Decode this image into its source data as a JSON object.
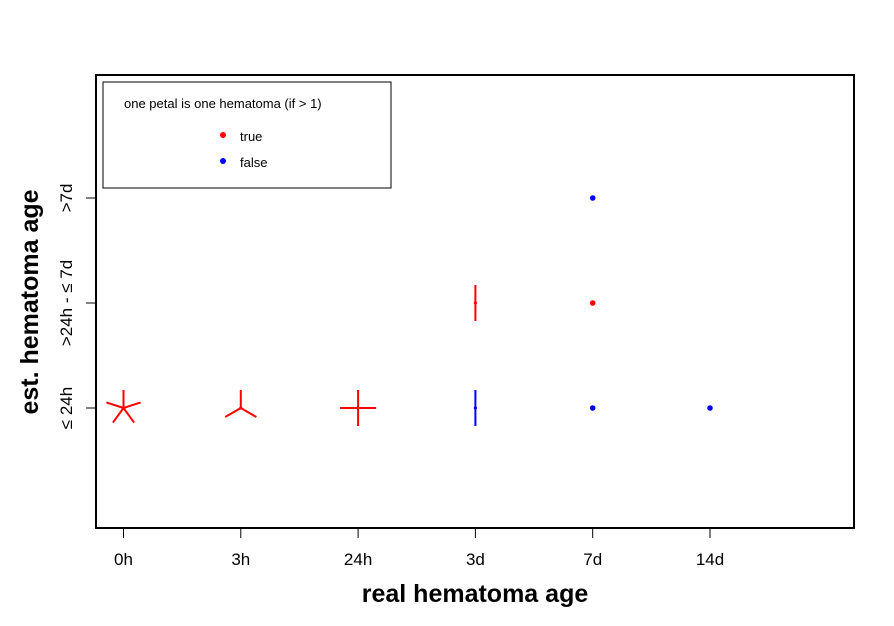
{
  "chart_data": {
    "type": "scatter",
    "title": "",
    "xlabel": "real hematoma age",
    "ylabel": "est. hematoma age",
    "x_categories": [
      "0h",
      "3h",
      "24h",
      "3d",
      "7d",
      "14d"
    ],
    "y_categories": [
      "≤ 24h",
      ">24h - ≤ 7d",
      ">7d"
    ],
    "legend": {
      "position": "top-left",
      "title": "one petal is one hematoma (if > 1)",
      "entries": [
        {
          "label": "true",
          "color": "#ff0000"
        },
        {
          "label": "false",
          "color": "#0000ff"
        }
      ]
    },
    "points": [
      {
        "x": "0h",
        "y": "≤ 24h",
        "count": 5,
        "correct": true
      },
      {
        "x": "3h",
        "y": "≤ 24h",
        "count": 3,
        "correct": true
      },
      {
        "x": "24h",
        "y": "≤ 24h",
        "count": 4,
        "correct": true
      },
      {
        "x": "3d",
        "y": "≤ 24h",
        "count": 2,
        "correct": false
      },
      {
        "x": "3d",
        "y": ">24h - ≤ 7d",
        "count": 2,
        "correct": true
      },
      {
        "x": "7d",
        "y": "≤ 24h",
        "count": 1,
        "correct": false
      },
      {
        "x": "7d",
        "y": ">24h - ≤ 7d",
        "count": 1,
        "correct": true
      },
      {
        "x": "7d",
        "y": ">7d",
        "count": 1,
        "correct": false
      },
      {
        "x": "14d",
        "y": "≤ 24h",
        "count": 1,
        "correct": false
      }
    ]
  }
}
